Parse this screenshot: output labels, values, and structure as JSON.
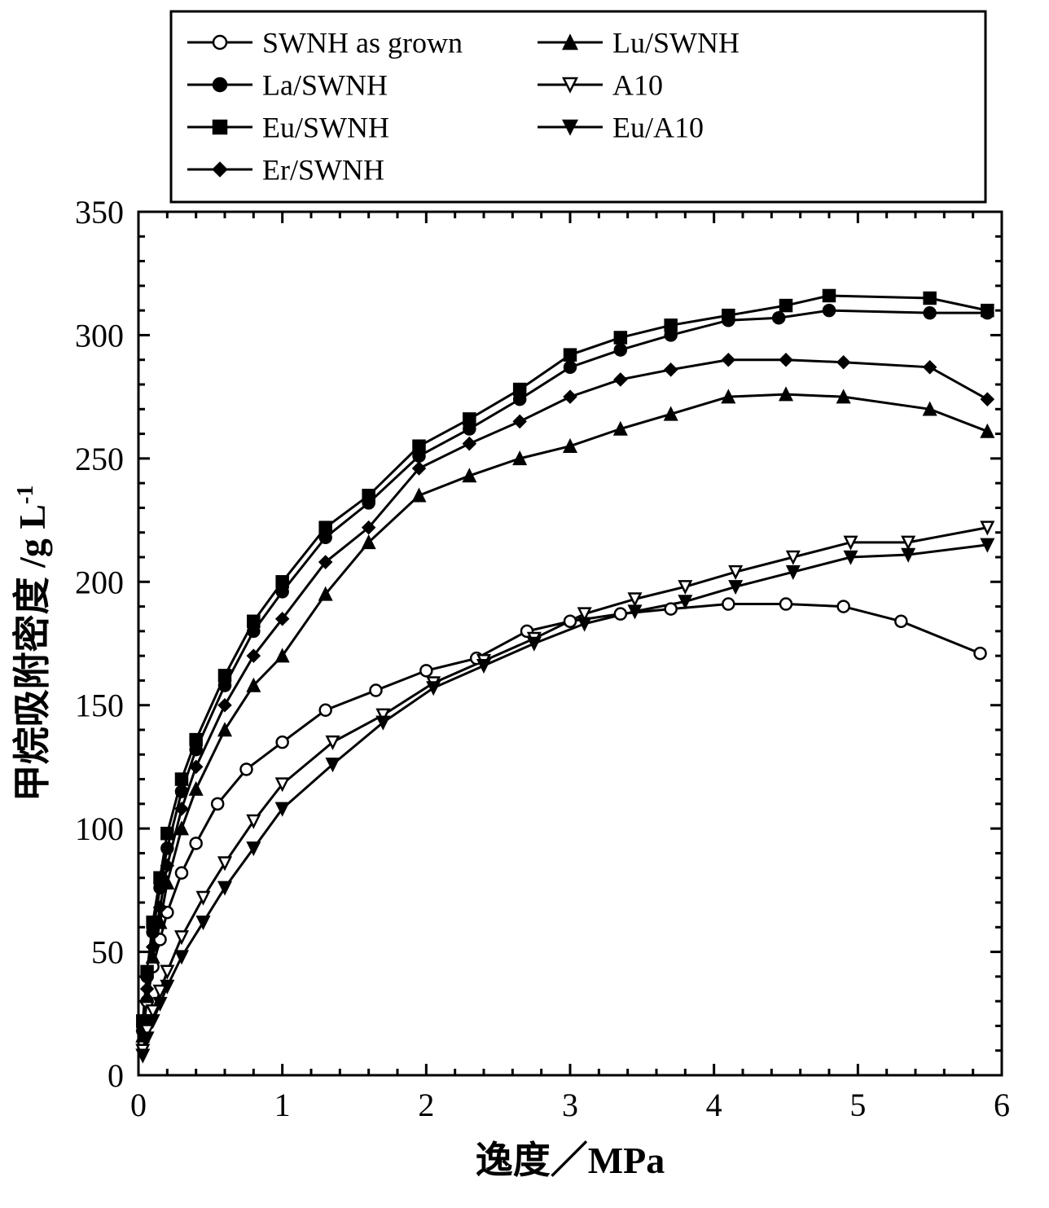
{
  "chart": {
    "type": "line",
    "background_color": "#ffffff",
    "plot_border_color": "#000000",
    "plot_border_width": 3,
    "font_family": "Times New Roman, SimSun, serif",
    "legend": {
      "border_color": "#000000",
      "border_width": 3,
      "font_size": 36,
      "columns": 2,
      "entries_col1": [
        {
          "series": "swnh",
          "label": "SWNH as grown"
        },
        {
          "series": "la",
          "label": "La/SWNH"
        },
        {
          "series": "eu",
          "label": "Eu/SWNH"
        },
        {
          "series": "er",
          "label": "Er/SWNH"
        }
      ],
      "entries_col2": [
        {
          "series": "lu",
          "label": "Lu/SWNH"
        },
        {
          "series": "a10",
          "label": "A10"
        },
        {
          "series": "eua10",
          "label": "Eu/A10"
        }
      ]
    },
    "xlabel": "逸度／MPa",
    "ylabel": "甲烷吸附密度 /g L",
    "ylabel_sup": "-1",
    "label_fontsize": 46,
    "tick_fontsize": 40,
    "xlim": [
      0,
      6
    ],
    "ylim": [
      0,
      350
    ],
    "xtick_step": 1,
    "ytick_step": 50,
    "xminor_per_major": 5,
    "yminor_per_major": 5,
    "tick_color": "#000000",
    "tick_width": 3,
    "major_tick_len": 14,
    "minor_tick_len": 8,
    "line_width": 3,
    "marker_size": 14,
    "marker_stroke_width": 2.5,
    "series": {
      "swnh": {
        "label": "SWNH as grown",
        "marker": "circle-open",
        "line_color": "#000000",
        "marker_face": "#ffffff",
        "marker_edge": "#000000",
        "x": [
          0.03,
          0.06,
          0.1,
          0.15,
          0.2,
          0.3,
          0.4,
          0.55,
          0.75,
          1.0,
          1.3,
          1.65,
          2.0,
          2.35,
          2.7,
          3.0,
          3.35,
          3.7,
          4.1,
          4.5,
          4.9,
          5.3,
          5.85
        ],
        "y": [
          18,
          30,
          44,
          55,
          66,
          82,
          94,
          110,
          124,
          135,
          148,
          156,
          164,
          169,
          180,
          184,
          187,
          189,
          191,
          191,
          190,
          184,
          171
        ]
      },
      "la": {
        "label": "La/SWNH",
        "marker": "circle-filled",
        "line_color": "#000000",
        "marker_face": "#000000",
        "marker_edge": "#000000",
        "x": [
          0.03,
          0.06,
          0.1,
          0.15,
          0.2,
          0.3,
          0.4,
          0.6,
          0.8,
          1.0,
          1.3,
          1.6,
          1.95,
          2.3,
          2.65,
          3.0,
          3.35,
          3.7,
          4.1,
          4.45,
          4.8,
          5.5,
          5.9
        ],
        "y": [
          20,
          40,
          58,
          76,
          92,
          115,
          132,
          158,
          180,
          196,
          218,
          232,
          251,
          262,
          274,
          287,
          294,
          300,
          306,
          307,
          310,
          309,
          309
        ]
      },
      "eu": {
        "label": "Eu/SWNH",
        "marker": "square-filled",
        "line_color": "#000000",
        "marker_face": "#000000",
        "marker_edge": "#000000",
        "x": [
          0.03,
          0.06,
          0.1,
          0.15,
          0.2,
          0.3,
          0.4,
          0.6,
          0.8,
          1.0,
          1.3,
          1.6,
          1.95,
          2.3,
          2.65,
          3.0,
          3.35,
          3.7,
          4.1,
          4.5,
          4.8,
          5.5,
          5.9
        ],
        "y": [
          22,
          42,
          62,
          80,
          98,
          120,
          136,
          162,
          184,
          200,
          222,
          235,
          255,
          266,
          278,
          292,
          299,
          304,
          308,
          312,
          316,
          315,
          310
        ]
      },
      "er": {
        "label": "Er/SWNH",
        "marker": "diamond-filled",
        "line_color": "#000000",
        "marker_face": "#000000",
        "marker_edge": "#000000",
        "x": [
          0.03,
          0.06,
          0.1,
          0.15,
          0.2,
          0.3,
          0.4,
          0.6,
          0.8,
          1.0,
          1.3,
          1.6,
          1.95,
          2.3,
          2.65,
          3.0,
          3.35,
          3.7,
          4.1,
          4.5,
          4.9,
          5.5,
          5.9
        ],
        "y": [
          18,
          35,
          52,
          68,
          85,
          108,
          125,
          150,
          170,
          185,
          208,
          222,
          246,
          256,
          265,
          275,
          282,
          286,
          290,
          290,
          289,
          287,
          274
        ]
      },
      "lu": {
        "label": "Lu/SWNH",
        "marker": "triangle-up-filled",
        "line_color": "#000000",
        "marker_face": "#000000",
        "marker_edge": "#000000",
        "x": [
          0.03,
          0.06,
          0.1,
          0.15,
          0.2,
          0.3,
          0.4,
          0.6,
          0.8,
          1.0,
          1.3,
          1.6,
          1.95,
          2.3,
          2.65,
          3.0,
          3.35,
          3.7,
          4.1,
          4.5,
          4.9,
          5.5,
          5.9
        ],
        "y": [
          16,
          32,
          48,
          62,
          78,
          100,
          116,
          140,
          158,
          170,
          195,
          216,
          235,
          243,
          250,
          255,
          262,
          268,
          275,
          276,
          275,
          270,
          261
        ]
      },
      "a10": {
        "label": "A10",
        "marker": "triangle-down-open",
        "line_color": "#000000",
        "marker_face": "#ffffff",
        "marker_edge": "#000000",
        "x": [
          0.03,
          0.06,
          0.1,
          0.15,
          0.2,
          0.3,
          0.45,
          0.6,
          0.8,
          1.0,
          1.35,
          1.7,
          2.05,
          2.4,
          2.75,
          3.1,
          3.45,
          3.8,
          4.15,
          4.55,
          4.95,
          5.35,
          5.9
        ],
        "y": [
          10,
          18,
          26,
          34,
          42,
          56,
          72,
          86,
          103,
          118,
          135,
          146,
          159,
          168,
          177,
          187,
          193,
          198,
          204,
          210,
          216,
          216,
          222
        ]
      },
      "eua10": {
        "label": "Eu/A10",
        "marker": "triangle-down-filled",
        "line_color": "#000000",
        "marker_face": "#000000",
        "marker_edge": "#000000",
        "x": [
          0.03,
          0.06,
          0.1,
          0.15,
          0.2,
          0.3,
          0.45,
          0.6,
          0.8,
          1.0,
          1.35,
          1.7,
          2.05,
          2.4,
          2.75,
          3.1,
          3.45,
          3.8,
          4.15,
          4.55,
          4.95,
          5.35,
          5.9
        ],
        "y": [
          8,
          15,
          22,
          29,
          36,
          48,
          62,
          76,
          92,
          108,
          126,
          143,
          157,
          166,
          175,
          183,
          188,
          192,
          198,
          204,
          210,
          211,
          215
        ]
      }
    }
  }
}
